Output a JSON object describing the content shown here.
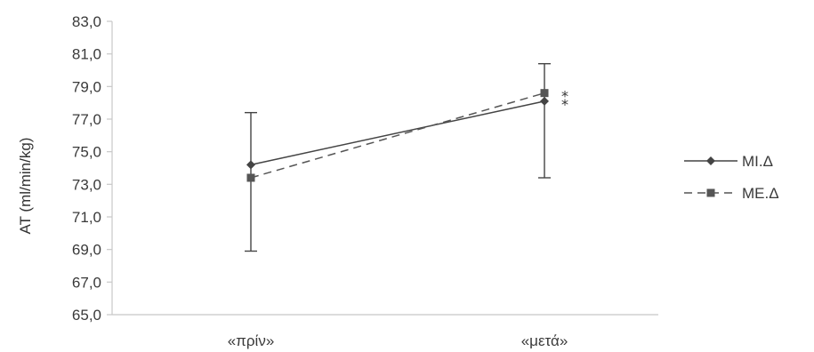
{
  "chart_data": {
    "type": "line",
    "categories": [
      "«πρίν»",
      "«μετά»"
    ],
    "ylabel": "AT (ml/min/kg)",
    "ylim": [
      65.0,
      83.0
    ],
    "yticks": [
      "65,0",
      "67,0",
      "69,0",
      "71,0",
      "73,0",
      "75,0",
      "77,0",
      "79,0",
      "81,0",
      "83,0"
    ],
    "series": [
      {
        "name": "MI.Δ",
        "values": [
          74.2,
          78.1
        ],
        "marker": "diamond",
        "linestyle": "solid",
        "color": "#444444"
      },
      {
        "name": "ME.Δ",
        "values": [
          73.4,
          78.6
        ],
        "marker": "square",
        "linestyle": "dashed",
        "color": "#555555"
      }
    ],
    "error_bars": [
      {
        "category": "«πρίν»",
        "low": 68.9,
        "high": 77.4
      },
      {
        "category": "«μετά»",
        "low": 73.4,
        "high": 80.4
      }
    ],
    "annotations": [
      "*",
      "*"
    ],
    "legend_position": "right",
    "grid": false
  }
}
